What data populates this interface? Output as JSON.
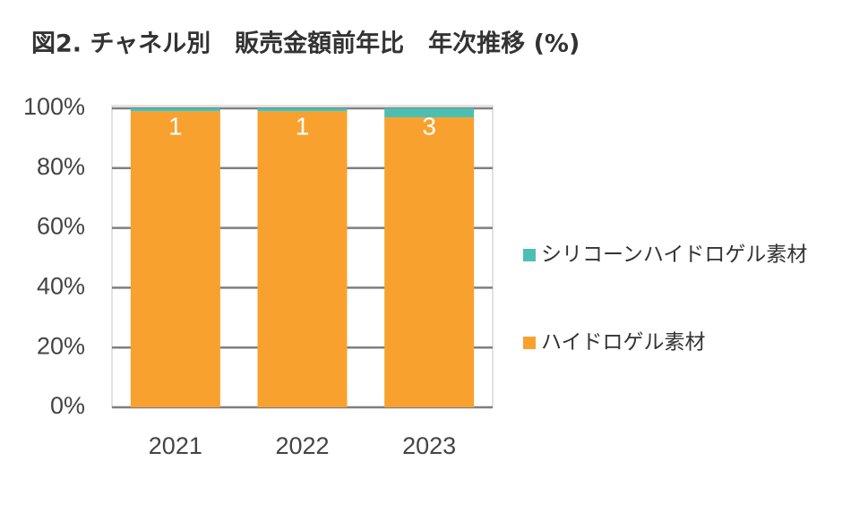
{
  "chart_data": {
    "type": "stacked_bar",
    "title": "図2. チャネル別　販売金額前年比　年次推移 (%)",
    "categories": [
      "2021",
      "2022",
      "2023"
    ],
    "series": [
      {
        "name": "ハイドロゲル素材",
        "color": "#F9A12E",
        "values": [
          99,
          99,
          97
        ]
      },
      {
        "name": "シリコーンハイドロゲル素材",
        "color": "#4DBFB2",
        "values": [
          1,
          1,
          3
        ],
        "show_labels": true
      }
    ],
    "ylim": [
      0,
      100
    ],
    "yticks": [
      {
        "value": 0,
        "label": "0%"
      },
      {
        "value": 20,
        "label": "20%"
      },
      {
        "value": 40,
        "label": "40%"
      },
      {
        "value": 60,
        "label": "60%"
      },
      {
        "value": 80,
        "label": "80%"
      },
      {
        "value": 100,
        "label": "100%"
      }
    ],
    "grid": true,
    "legend": "right"
  }
}
